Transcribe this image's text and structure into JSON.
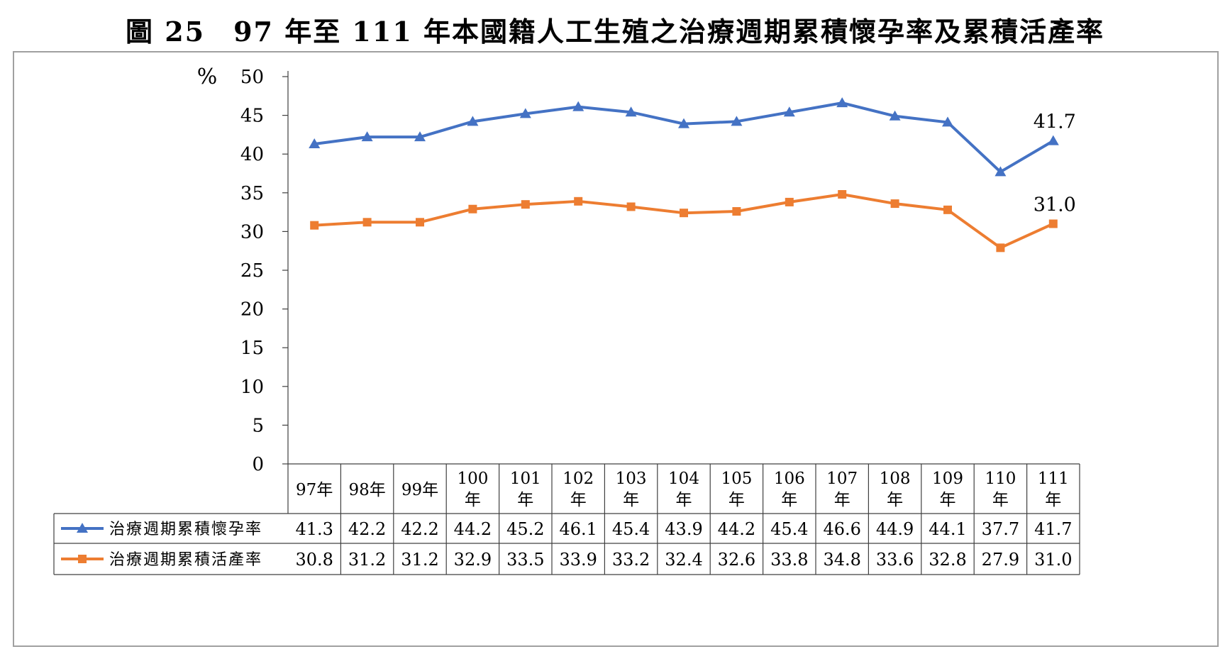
{
  "title": "圖 25　97 年至 111 年本國籍人工生殖之治療週期累積懷孕率及累積活產率",
  "chart_data": {
    "type": "line",
    "title": "圖 25　97 年至 111 年本國籍人工生殖之治療週期累積懷孕率及累積活產率",
    "ylabel": "%",
    "ylim": [
      0,
      50
    ],
    "yticks": [
      0,
      5,
      10,
      15,
      20,
      25,
      30,
      35,
      40,
      45,
      50
    ],
    "categories": [
      "97年",
      "98年",
      "99年",
      "100年",
      "101年",
      "102年",
      "103年",
      "104年",
      "105年",
      "106年",
      "107年",
      "108年",
      "109年",
      "110年",
      "111年"
    ],
    "category_lines": [
      [
        "97年"
      ],
      [
        "98年"
      ],
      [
        "99年"
      ],
      [
        "100",
        "年"
      ],
      [
        "101",
        "年"
      ],
      [
        "102",
        "年"
      ],
      [
        "103",
        "年"
      ],
      [
        "104",
        "年"
      ],
      [
        "105",
        "年"
      ],
      [
        "106",
        "年"
      ],
      [
        "107",
        "年"
      ],
      [
        "108",
        "年"
      ],
      [
        "109",
        "年"
      ],
      [
        "110",
        "年"
      ],
      [
        "111",
        "年"
      ]
    ],
    "grid": false,
    "legend": "data-table",
    "series": [
      {
        "name": "治療週期累積懷孕率",
        "color": "#4472c4",
        "marker": "triangle",
        "values": [
          41.3,
          42.2,
          42.2,
          44.2,
          45.2,
          46.1,
          45.4,
          43.9,
          44.2,
          45.4,
          46.6,
          44.9,
          44.1,
          37.7,
          41.7
        ],
        "table_values": [
          "41.3",
          "42.2",
          "42.2",
          "44.2",
          "45.2",
          "46.1",
          "45.4",
          "43.9",
          "44.2",
          "45.4",
          "46.6",
          "44.9",
          "44.1",
          "37.7",
          "41.7"
        ],
        "end_label": "41.7"
      },
      {
        "name": "治療週期累積活產率",
        "color": "#ed7d31",
        "marker": "square",
        "values": [
          30.8,
          31.2,
          31.2,
          32.9,
          33.5,
          33.9,
          33.2,
          32.4,
          32.6,
          33.8,
          34.8,
          33.6,
          32.8,
          27.9,
          31.0
        ],
        "table_values": [
          "30.8",
          "31.2",
          "31.2",
          "32.9",
          "33.5",
          "33.9",
          "33.2",
          "32.4",
          "32.6",
          "33.8",
          "34.8",
          "33.6",
          "32.8",
          "27.9",
          "31.0"
        ],
        "end_label": "31.0"
      }
    ]
  }
}
